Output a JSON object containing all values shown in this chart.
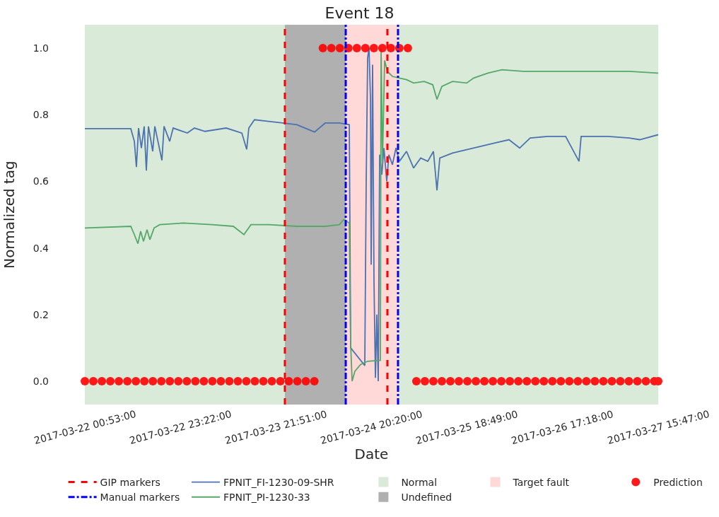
{
  "chart_data": {
    "type": "line",
    "title": "Event 18",
    "xlabel": "Date",
    "ylabel": "Normalized tag",
    "xlim": [
      "2017-03-22T00:53",
      "2017-03-27T15:47"
    ],
    "xticks": [
      {
        "value": "2017-03-22T00:53",
        "label": "2017-03-22 00:53:00"
      },
      {
        "value": "2017-03-22T23:22",
        "label": "2017-03-22 23:22:00"
      },
      {
        "value": "2017-03-23T21:51",
        "label": "2017-03-23 21:51:00"
      },
      {
        "value": "2017-03-24T20:20",
        "label": "2017-03-24 20:20:00"
      },
      {
        "value": "2017-03-25T18:49",
        "label": "2017-03-25 18:49:00"
      },
      {
        "value": "2017-03-26T17:18",
        "label": "2017-03-26 17:18:00"
      },
      {
        "value": "2017-03-27T15:47",
        "label": "2017-03-27 15:47:00"
      }
    ],
    "ylim": [
      -0.07,
      1.07
    ],
    "yticks": [
      {
        "value": 0,
        "label": "0.0"
      },
      {
        "value": 0.2,
        "label": "0.2"
      },
      {
        "value": 0.4,
        "label": "0.4"
      },
      {
        "value": 0.6,
        "label": "0.6"
      },
      {
        "value": 0.8,
        "label": "0.8"
      },
      {
        "value": 1,
        "label": "1.0"
      }
    ],
    "grid": false,
    "legend": "bottom",
    "bands": [
      {
        "axis": "x",
        "from": "2017-03-22T00:53",
        "to": "2017-03-23T23:57",
        "label": "Normal",
        "color": "#d9ebd8"
      },
      {
        "axis": "x",
        "from": "2017-03-23T23:57",
        "to": "2017-03-24T14:16",
        "label": "Undefined",
        "color": "#b0b0b0"
      },
      {
        "axis": "x",
        "from": "2017-03-24T14:16",
        "to": "2017-03-25T02:34",
        "label": "Target fault",
        "color": "#ffd8d8"
      },
      {
        "axis": "x",
        "from": "2017-03-25T02:34",
        "to": "2017-03-27T15:47",
        "color": "#d9ebd8"
      }
    ],
    "ref_lines": [
      {
        "axis": "x",
        "value": "2017-03-23T23:57",
        "label": "GIP markers",
        "color": "#ff0000",
        "line_style": "dashed"
      },
      {
        "axis": "x",
        "value": "2017-03-25T00:04",
        "color": "#ff0000",
        "line_style": "dashed"
      },
      {
        "axis": "x",
        "value": "2017-03-24T14:16",
        "label": "Manual markers",
        "color": "#0000ff",
        "line_style": "dashdot"
      },
      {
        "axis": "x",
        "value": "2017-03-25T02:34",
        "color": "#0000ff",
        "line_style": "dashdot"
      }
    ],
    "series": [
      {
        "name": "FPNIT_FI-1230-09-SHR",
        "color": "#4c72b0",
        "x": [
          "2017-03-22T00:53",
          "2017-03-22T11:42",
          "2017-03-22T12:32",
          "2017-03-22T13:01",
          "2017-03-22T13:31",
          "2017-03-22T14:11",
          "2017-03-22T14:51",
          "2017-03-22T15:21",
          "2017-03-22T15:51",
          "2017-03-22T16:51",
          "2017-03-22T17:21",
          "2017-03-22T19:01",
          "2017-03-22T19:31",
          "2017-03-22T20:51",
          "2017-03-22T21:40",
          "2017-03-23T01:00",
          "2017-03-23T02:40",
          "2017-03-23T05:10",
          "2017-03-23T10:09",
          "2017-03-23T13:49",
          "2017-03-23T14:58",
          "2017-03-23T15:28",
          "2017-03-23T16:48",
          "2017-03-23T20:08",
          "2017-03-23T23:28",
          "2017-03-24T02:47",
          "2017-03-24T06:56",
          "2017-03-24T09:26",
          "2017-03-24T12:46",
          "2017-03-24T15:06",
          "2017-03-24T15:26",
          "2017-03-24T18:45",
          "2017-03-24T19:05",
          "2017-03-24T19:25",
          "2017-03-24T19:45",
          "2017-03-24T20:05",
          "2017-03-24T20:15",
          "2017-03-24T20:35",
          "2017-03-24T20:55",
          "2017-03-24T21:15",
          "2017-03-24T21:35",
          "2017-03-24T21:55",
          "2017-03-24T22:15",
          "2017-03-24T22:45",
          "2017-03-24T23:15",
          "2017-03-24T23:55",
          "2017-03-25T00:25",
          "2017-03-25T01:15",
          "2017-03-25T02:05",
          "2017-03-25T02:54",
          "2017-03-25T04:34",
          "2017-03-25T06:14",
          "2017-03-25T07:54",
          "2017-03-25T09:34",
          "2017-03-25T10:54",
          "2017-03-25T11:44",
          "2017-03-25T12:24",
          "2017-03-25T15:24",
          "2017-03-25T18:43",
          "2017-03-25T22:03",
          "2017-03-26T01:22",
          "2017-03-26T04:41",
          "2017-03-26T07:11",
          "2017-03-26T09:40",
          "2017-03-26T13:50",
          "2017-03-26T18:00",
          "2017-03-26T21:09",
          "2017-03-26T21:39",
          "2017-03-27T00:39",
          "2017-03-27T03:58",
          "2017-03-27T08:58",
          "2017-03-27T11:27",
          "2017-03-27T15:47"
        ],
        "values": [
          0.758,
          0.758,
          0.72,
          0.643,
          0.76,
          0.7,
          0.765,
          0.632,
          0.765,
          0.69,
          0.765,
          0.663,
          0.765,
          0.72,
          0.76,
          0.745,
          0.76,
          0.75,
          0.76,
          0.745,
          0.696,
          0.76,
          0.785,
          0.78,
          0.775,
          0.77,
          0.748,
          0.775,
          0.775,
          0.77,
          0.1,
          0.047,
          0.6,
          0.97,
          1.0,
          0.85,
          0.35,
          0.95,
          0.3,
          0.01,
          0.2,
          0.0,
          0.68,
          0.62,
          0.7,
          0.6,
          0.68,
          0.65,
          0.7,
          0.66,
          0.69,
          0.64,
          0.67,
          0.66,
          0.69,
          0.573,
          0.67,
          0.685,
          0.695,
          0.705,
          0.715,
          0.725,
          0.7,
          0.73,
          0.735,
          0.735,
          0.66,
          0.735,
          0.735,
          0.735,
          0.73,
          0.725,
          0.74
        ]
      },
      {
        "name": "FPNIT_PI-1230-33",
        "color": "#55a868",
        "x": [
          "2017-03-22T00:53",
          "2017-03-22T11:42",
          "2017-03-22T12:32",
          "2017-03-22T13:22",
          "2017-03-22T14:01",
          "2017-03-22T14:41",
          "2017-03-22T15:31",
          "2017-03-22T16:11",
          "2017-03-22T17:11",
          "2017-03-22T18:31",
          "2017-03-23T00:10",
          "2017-03-23T06:49",
          "2017-03-23T11:49",
          "2017-03-23T14:19",
          "2017-03-23T15:58",
          "2017-03-23T20:08",
          "2017-03-24T02:47",
          "2017-03-24T09:26",
          "2017-03-24T12:46",
          "2017-03-24T13:46",
          "2017-03-24T15:06",
          "2017-03-24T15:26",
          "2017-03-24T15:46",
          "2017-03-24T16:25",
          "2017-03-24T17:45",
          "2017-03-24T19:25",
          "2017-03-24T22:25",
          "2017-03-24T22:35",
          "2017-03-24T22:55",
          "2017-03-24T23:25",
          "2017-03-25T00:04",
          "2017-03-25T01:15",
          "2017-03-25T02:54",
          "2017-03-25T04:34",
          "2017-03-25T06:14",
          "2017-03-25T08:44",
          "2017-03-25T10:44",
          "2017-03-25T11:44",
          "2017-03-25T12:53",
          "2017-03-25T15:24",
          "2017-03-25T18:43",
          "2017-03-25T20:22",
          "2017-03-25T23:42",
          "2017-03-26T03:01",
          "2017-03-26T08:01",
          "2017-03-26T14:40",
          "2017-03-26T18:00",
          "2017-03-27T00:39",
          "2017-03-27T08:58",
          "2017-03-27T15:47"
        ],
        "values": [
          0.46,
          0.465,
          0.44,
          0.413,
          0.45,
          0.42,
          0.455,
          0.425,
          0.46,
          0.47,
          0.475,
          0.47,
          0.465,
          0.44,
          0.47,
          0.47,
          0.465,
          0.465,
          0.47,
          0.485,
          0.475,
          0.11,
          0.0,
          0.03,
          0.05,
          0.06,
          0.063,
          1.0,
          0.66,
          0.963,
          0.93,
          0.915,
          0.91,
          0.905,
          0.895,
          0.9,
          0.89,
          0.846,
          0.885,
          0.9,
          0.895,
          0.91,
          0.925,
          0.935,
          0.93,
          0.93,
          0.93,
          0.93,
          0.93,
          0.925
        ]
      },
      {
        "name": "Prediction",
        "color": "#ff0000",
        "type": "scatter",
        "x": [
          "2017-03-22T00:53",
          "2017-03-22T02:53",
          "2017-03-22T04:53",
          "2017-03-22T06:53",
          "2017-03-22T08:53",
          "2017-03-22T10:53",
          "2017-03-22T12:53",
          "2017-03-22T14:53",
          "2017-03-22T16:53",
          "2017-03-22T18:53",
          "2017-03-22T20:53",
          "2017-03-22T22:53",
          "2017-03-23T00:53",
          "2017-03-23T02:53",
          "2017-03-23T04:53",
          "2017-03-23T06:53",
          "2017-03-23T08:53",
          "2017-03-23T10:53",
          "2017-03-23T12:53",
          "2017-03-23T14:53",
          "2017-03-23T16:53",
          "2017-03-23T18:53",
          "2017-03-23T20:53",
          "2017-03-23T22:53",
          "2017-03-24T00:53",
          "2017-03-24T02:53",
          "2017-03-24T04:53",
          "2017-03-24T06:53",
          "2017-03-24T08:53",
          "2017-03-24T10:53",
          "2017-03-24T12:53",
          "2017-03-24T14:53",
          "2017-03-24T16:53",
          "2017-03-24T18:53",
          "2017-03-24T20:53",
          "2017-03-24T22:53",
          "2017-03-25T00:53",
          "2017-03-25T02:53",
          "2017-03-25T04:53",
          "2017-03-25T06:53",
          "2017-03-25T08:53",
          "2017-03-25T10:53",
          "2017-03-25T12:53",
          "2017-03-25T14:53",
          "2017-03-25T16:53",
          "2017-03-25T18:53",
          "2017-03-25T20:53",
          "2017-03-25T22:53",
          "2017-03-26T00:53",
          "2017-03-26T02:53",
          "2017-03-26T04:53",
          "2017-03-26T06:53",
          "2017-03-26T08:53",
          "2017-03-26T10:53",
          "2017-03-26T12:53",
          "2017-03-26T14:53",
          "2017-03-26T16:53",
          "2017-03-26T18:53",
          "2017-03-26T20:53",
          "2017-03-26T22:53",
          "2017-03-27T00:53",
          "2017-03-27T02:53",
          "2017-03-27T04:53",
          "2017-03-27T06:53",
          "2017-03-27T08:53",
          "2017-03-27T10:53",
          "2017-03-27T12:53",
          "2017-03-27T14:53",
          "2017-03-27T15:47"
        ],
        "values": [
          0,
          0,
          0,
          0,
          0,
          0,
          0,
          0,
          0,
          0,
          0,
          0,
          0,
          0,
          0,
          0,
          0,
          0,
          0,
          0,
          0,
          0,
          0,
          0,
          0,
          0,
          0,
          0,
          1,
          1,
          1,
          1,
          1,
          1,
          1,
          1,
          1,
          1,
          1,
          0,
          0,
          0,
          0,
          0,
          0,
          0,
          0,
          0,
          0,
          0,
          0,
          0,
          0,
          0,
          0,
          0,
          0,
          0,
          0,
          0,
          0,
          0,
          0,
          0,
          0,
          0,
          0,
          0,
          0
        ]
      }
    ]
  }
}
